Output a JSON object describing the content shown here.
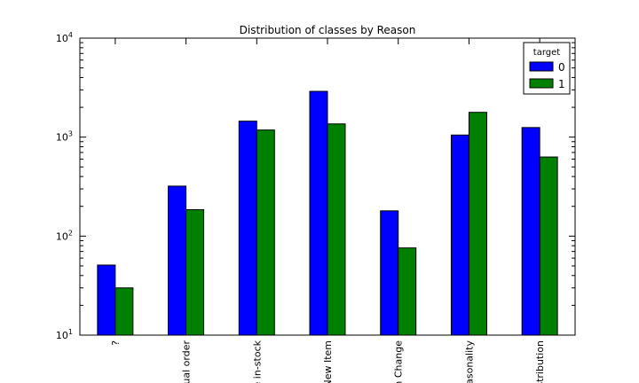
{
  "chart_data": {
    "type": "bar",
    "title": "Distribution of classes by Reason",
    "xlabel": "",
    "ylabel": "",
    "yscale": "log",
    "ylim": [
      10,
      10000
    ],
    "y_ticks": [
      {
        "value": 10,
        "base": "10",
        "exp": "1"
      },
      {
        "value": 100,
        "base": "10",
        "exp": "2"
      },
      {
        "value": 1000,
        "base": "10",
        "exp": "3"
      },
      {
        "value": 10000,
        "base": "10",
        "exp": "4"
      }
    ],
    "categories": [
      "?",
      "nual order",
      "e in-stock",
      "New Item",
      "on Change",
      "easonality",
      "stribution"
    ],
    "legend": {
      "title": "target",
      "position": "top-right"
    },
    "series": [
      {
        "name": "0",
        "color": "#0000ff",
        "values": [
          51,
          320,
          1450,
          2900,
          180,
          1050,
          1250
        ]
      },
      {
        "name": "1",
        "color": "#008000",
        "values": [
          30,
          185,
          1180,
          1360,
          76,
          1780,
          630
        ]
      }
    ]
  }
}
